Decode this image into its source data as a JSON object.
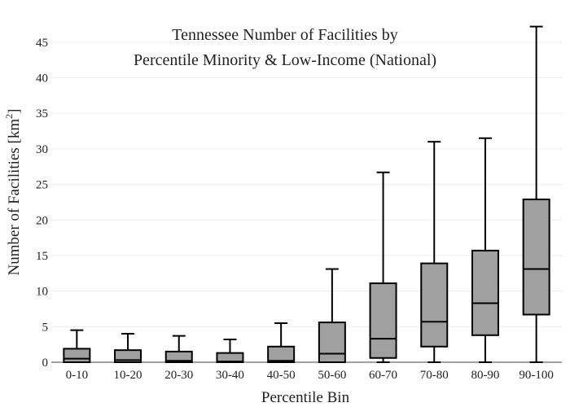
{
  "chart_data": {
    "type": "box",
    "title_lines": [
      "Tennessee Number of Facilities by",
      "Percentile Minority & Low-Income (National)"
    ],
    "xlabel": "Percentile Bin",
    "ylabel_main": "Number of Facilities  [km",
    "ylabel_sup": "2",
    "ylabel_close": "]",
    "ylim": [
      0,
      47.5
    ],
    "yticks": [
      0,
      5,
      10,
      15,
      20,
      25,
      30,
      35,
      40,
      45
    ],
    "grid": true,
    "categories": [
      "0-10",
      "10-20",
      "20-30",
      "30-40",
      "40-50",
      "50-60",
      "60-70",
      "70-80",
      "80-90",
      "90-100"
    ],
    "boxes": [
      {
        "category": "0-10",
        "min": 0,
        "q1": 0,
        "median": 0.5,
        "q3": 1.9,
        "max": 4.5
      },
      {
        "category": "10-20",
        "min": 0,
        "q1": 0,
        "median": 0.3,
        "q3": 1.7,
        "max": 4.0
      },
      {
        "category": "20-30",
        "min": 0,
        "q1": 0,
        "median": 0.2,
        "q3": 1.5,
        "max": 3.7
      },
      {
        "category": "30-40",
        "min": 0,
        "q1": 0,
        "median": 0.1,
        "q3": 1.3,
        "max": 3.2
      },
      {
        "category": "40-50",
        "min": 0,
        "q1": 0,
        "median": 0.2,
        "q3": 2.2,
        "max": 5.5
      },
      {
        "category": "50-60",
        "min": 0,
        "q1": 0,
        "median": 1.2,
        "q3": 5.6,
        "max": 13.1
      },
      {
        "category": "60-70",
        "min": 0,
        "q1": 0.6,
        "median": 3.3,
        "q3": 11.1,
        "max": 26.7
      },
      {
        "category": "70-80",
        "min": 0,
        "q1": 2.2,
        "median": 5.7,
        "q3": 13.9,
        "max": 31.0
      },
      {
        "category": "80-90",
        "min": 0,
        "q1": 3.8,
        "median": 8.3,
        "q3": 15.7,
        "max": 31.5
      },
      {
        "category": "90-100",
        "min": 0,
        "q1": 6.7,
        "median": 13.1,
        "q3": 22.9,
        "max": 47.2
      }
    ],
    "colors": {
      "box_fill": "#a0a0a0",
      "box_stroke": "#000000",
      "grid": "#eeeeee",
      "axis": "#444444"
    }
  }
}
